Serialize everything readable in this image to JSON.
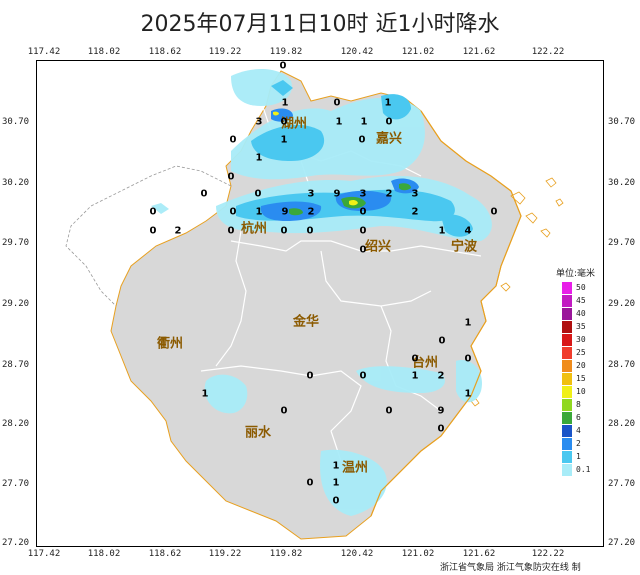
{
  "title": "2025年07月11日10时  近1小时降水",
  "x_ticks": [
    "117.42",
    "118.02",
    "118.62",
    "119.22",
    "119.82",
    "120.42",
    "121.02",
    "121.62",
    "122.22"
  ],
  "y_ticks": [
    "30.70",
    "30.20",
    "29.70",
    "29.20",
    "28.70",
    "28.20",
    "27.70",
    "27.20"
  ],
  "cities": [
    {
      "name": "湖州"
    },
    {
      "name": "嘉兴"
    },
    {
      "name": "杭州"
    },
    {
      "name": "绍兴"
    },
    {
      "name": "宁波"
    },
    {
      "name": "衢州"
    },
    {
      "name": "金华"
    },
    {
      "name": "台州"
    },
    {
      "name": "丽水"
    },
    {
      "name": "温州"
    }
  ],
  "values": [
    "0",
    "1",
    "0",
    "1",
    "3",
    "0",
    "1",
    "1",
    "0",
    "0",
    "1",
    "0",
    "1",
    "0",
    "0",
    "0",
    "3",
    "9",
    "3",
    "2",
    "3",
    "0",
    "0",
    "1",
    "9",
    "2",
    "0",
    "2",
    "0",
    "0",
    "0",
    "2",
    "0",
    "0",
    "0",
    "1",
    "4",
    "0",
    "1",
    "0",
    "0",
    "0",
    "1",
    "2",
    "0",
    "1",
    "1",
    "0",
    "0",
    "9",
    "0",
    "1",
    "0",
    "1",
    "0",
    "0"
  ],
  "legend": {
    "title": "单位:毫米",
    "items": [
      {
        "label": "50",
        "color": "#e81ee8"
      },
      {
        "label": "45",
        "color": "#c21ac2"
      },
      {
        "label": "40",
        "color": "#9a169a"
      },
      {
        "label": "35",
        "color": "#b01010"
      },
      {
        "label": "30",
        "color": "#d81818"
      },
      {
        "label": "25",
        "color": "#f03c2c"
      },
      {
        "label": "20",
        "color": "#f08c1c"
      },
      {
        "label": "15",
        "color": "#f0c010"
      },
      {
        "label": "10",
        "color": "#f0f018"
      },
      {
        "label": "8",
        "color": "#90d820"
      },
      {
        "label": "6",
        "color": "#3aa83a"
      },
      {
        "label": "4",
        "color": "#1a54c8"
      },
      {
        "label": "2",
        "color": "#2a8cf0"
      },
      {
        "label": "1",
        "color": "#4ac8f0"
      },
      {
        "label": "0.1",
        "color": "#a8ecf8"
      }
    ]
  },
  "footer": "浙江省气象局   浙江气象防灾在线 制"
}
